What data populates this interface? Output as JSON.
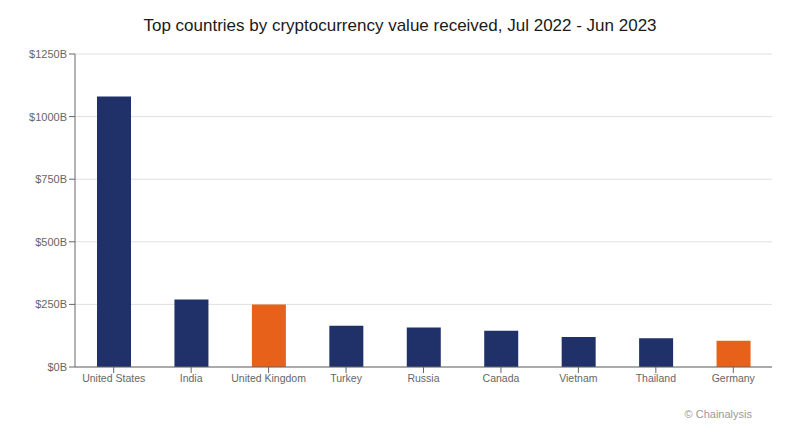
{
  "chart_data": {
    "type": "bar",
    "title": "Top countries by cryptocurrency value received, Jul 2022 - Jun 2023",
    "categories": [
      "United States",
      "India",
      "United Kingdom",
      "Turkey",
      "Russia",
      "Canada",
      "Vietnam",
      "Thailand",
      "Germany"
    ],
    "values": [
      1080,
      270,
      250,
      165,
      158,
      145,
      120,
      115,
      105
    ],
    "colors": [
      "#1f3168",
      "#1f3168",
      "#e8611a",
      "#1f3168",
      "#1f3168",
      "#1f3168",
      "#1f3168",
      "#1f3168",
      "#e8611a"
    ],
    "ylim": [
      0,
      1250
    ],
    "yticks": [
      {
        "value": 0,
        "label": "$0B"
      },
      {
        "value": 250,
        "label": "$250B"
      },
      {
        "value": 500,
        "label": "$500B"
      },
      {
        "value": 750,
        "label": "$750B"
      },
      {
        "value": 1000,
        "label": "$1000B"
      },
      {
        "value": 1250,
        "label": "$1250B"
      }
    ],
    "grid": true,
    "annotations": [
      "© Chainalysis"
    ]
  }
}
